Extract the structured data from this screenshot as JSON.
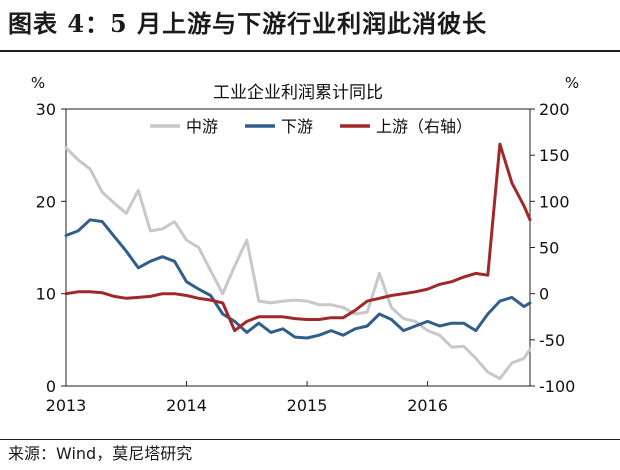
{
  "figure_title": "图表 4：5 月上游与下游行业利润此消彼长",
  "source": "来源：Wind，莫尼塔研究",
  "chart_data": {
    "type": "line",
    "title": "工业企业利润累计同比",
    "y_left_unit": "%",
    "y_right_unit": "%",
    "y_left_range": [
      0,
      30
    ],
    "y_right_range": [
      -100,
      200
    ],
    "y_left_ticks": [
      "0",
      "10",
      "20",
      "30"
    ],
    "y_right_ticks": [
      "-100",
      "-50",
      "0",
      "50",
      "100",
      "150",
      "200"
    ],
    "x_range": [
      2013.0,
      2016.85
    ],
    "x_ticks": [
      "2013",
      "2014",
      "2015",
      "2016"
    ],
    "grid": false,
    "legend_position": "top",
    "series": [
      {
        "name": "中游",
        "axis": "left",
        "color": "#c8c8c8",
        "x": [
          2013.0,
          2013.1,
          2013.2,
          2013.3,
          2013.4,
          2013.5,
          2013.6,
          2013.7,
          2013.8,
          2013.9,
          2014.0,
          2014.1,
          2014.2,
          2014.3,
          2014.4,
          2014.5,
          2014.6,
          2014.7,
          2014.8,
          2014.9,
          2015.0,
          2015.1,
          2015.2,
          2015.3,
          2015.4,
          2015.5,
          2015.6,
          2015.7,
          2015.8,
          2015.9,
          2016.0,
          2016.1,
          2016.2,
          2016.3,
          2016.4,
          2016.5,
          2016.6,
          2016.7,
          2016.8,
          2016.85
        ],
        "values": [
          25.8,
          24.5,
          23.5,
          21.0,
          19.8,
          18.7,
          21.2,
          16.8,
          17.0,
          17.8,
          15.8,
          15.0,
          12.5,
          10.0,
          13.0,
          15.8,
          9.2,
          9.0,
          9.2,
          9.3,
          9.2,
          8.8,
          8.8,
          8.5,
          7.8,
          8.0,
          12.2,
          8.5,
          7.3,
          7.0,
          6.0,
          5.5,
          4.2,
          4.3,
          3.0,
          1.5,
          0.8,
          2.5,
          3.0,
          4.0
        ]
      },
      {
        "name": "下游",
        "axis": "left",
        "color": "#2f5f8a",
        "x": [
          2013.0,
          2013.1,
          2013.2,
          2013.3,
          2013.4,
          2013.5,
          2013.6,
          2013.7,
          2013.8,
          2013.9,
          2014.0,
          2014.1,
          2014.2,
          2014.3,
          2014.4,
          2014.5,
          2014.6,
          2014.7,
          2014.8,
          2014.9,
          2015.0,
          2015.1,
          2015.2,
          2015.3,
          2015.4,
          2015.5,
          2015.6,
          2015.7,
          2015.8,
          2015.9,
          2016.0,
          2016.1,
          2016.2,
          2016.3,
          2016.4,
          2016.5,
          2016.6,
          2016.7,
          2016.8,
          2016.85
        ],
        "values": [
          16.3,
          16.8,
          18.0,
          17.8,
          16.2,
          14.6,
          12.8,
          13.5,
          14.0,
          13.5,
          11.3,
          10.5,
          9.8,
          7.8,
          7.0,
          5.8,
          6.8,
          5.8,
          6.2,
          5.3,
          5.2,
          5.5,
          6.0,
          5.5,
          6.2,
          6.5,
          7.8,
          7.2,
          6.0,
          6.5,
          7.0,
          6.5,
          6.8,
          6.8,
          6.0,
          7.8,
          9.2,
          9.6,
          8.6,
          9.0
        ]
      },
      {
        "name": "上游（右轴）",
        "axis": "right",
        "color": "#a0282a",
        "x": [
          2013.0,
          2013.1,
          2013.2,
          2013.3,
          2013.4,
          2013.5,
          2013.6,
          2013.7,
          2013.8,
          2013.9,
          2014.0,
          2014.1,
          2014.2,
          2014.3,
          2014.4,
          2014.5,
          2014.6,
          2014.7,
          2014.8,
          2014.9,
          2015.0,
          2015.1,
          2015.2,
          2015.3,
          2015.4,
          2015.5,
          2015.6,
          2015.7,
          2015.8,
          2015.9,
          2016.0,
          2016.1,
          2016.2,
          2016.3,
          2016.4,
          2016.5,
          2016.6,
          2016.7,
          2016.8,
          2016.85
        ],
        "values": [
          0,
          2,
          2,
          1,
          -3,
          -5,
          -4,
          -3,
          0,
          0,
          -2,
          -5,
          -7,
          -10,
          -40,
          -30,
          -25,
          -25,
          -25,
          -27,
          -28,
          -28,
          -26,
          -26,
          -18,
          -8,
          -5,
          -2,
          0,
          2,
          5,
          10,
          13,
          18,
          22,
          20,
          162,
          120,
          95,
          80
        ]
      }
    ]
  }
}
